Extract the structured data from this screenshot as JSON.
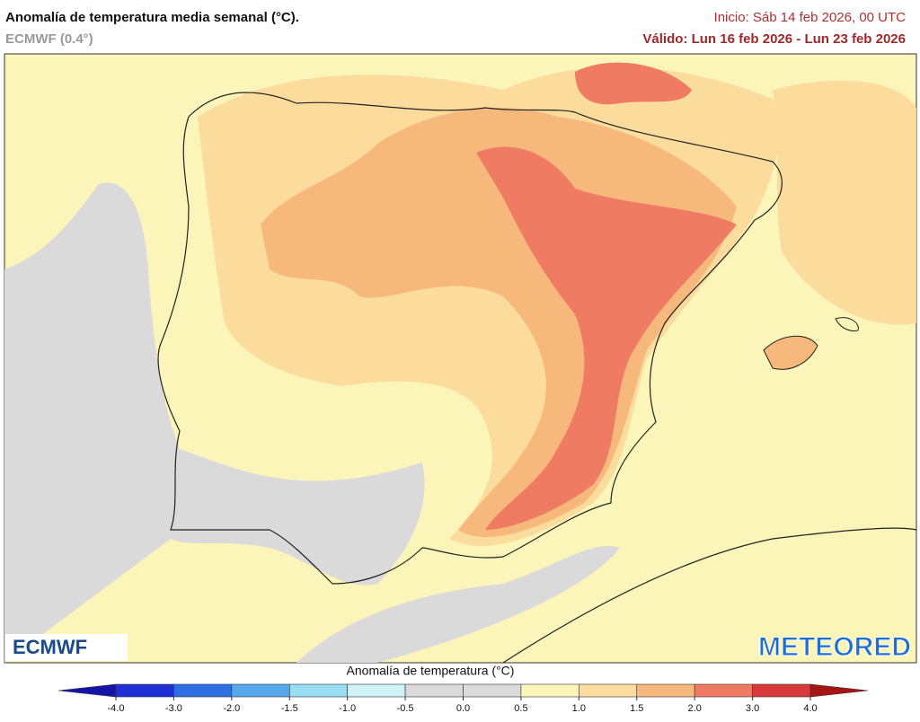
{
  "header": {
    "title": "Anomalía de temperatura media semanal (°C).",
    "model": "ECMWF (0.4°)",
    "init": "Inicio: Sáb 14 feb 2026, 00 UTC",
    "valid": "Válido: Lun 16 feb 2026 - Lun 23 feb 2026"
  },
  "logos": {
    "left": "ECMWF",
    "right": "METEORED"
  },
  "colorbar": {
    "title": "Anomalía de temperatura (°C)",
    "ticks": [
      {
        "value": -4,
        "label": "-4.0"
      },
      {
        "value": -3,
        "label": "-3.0"
      },
      {
        "value": -2,
        "label": "-2.0"
      },
      {
        "value": -1.5,
        "label": "-1.5"
      },
      {
        "value": -1,
        "label": "-1.0"
      },
      {
        "value": -0.5,
        "label": "-0.5"
      },
      {
        "value": 0,
        "label": "0.0"
      },
      {
        "value": 0.5,
        "label": "0.5"
      },
      {
        "value": 1,
        "label": "1.0"
      },
      {
        "value": 1.5,
        "label": "1.5"
      },
      {
        "value": 2,
        "label": "2.0"
      },
      {
        "value": 3,
        "label": "3.0"
      },
      {
        "value": 4,
        "label": "4.0"
      }
    ],
    "colors": [
      "#1f2fd6",
      "#2f6fe4",
      "#55a8ec",
      "#97def4",
      "#cdf3f6",
      "#dadada",
      "#dadada",
      "#fcf5b9",
      "#fcdc9c",
      "#f7b87c",
      "#ef7c62",
      "#d8393a"
    ],
    "under_color": "#1414a8",
    "over_color": "#a81414"
  }
}
